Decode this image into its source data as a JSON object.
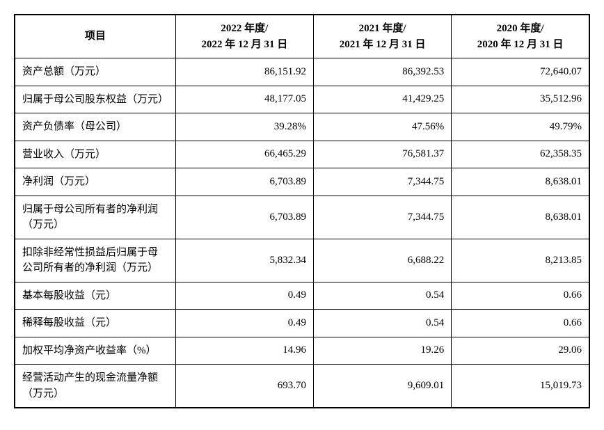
{
  "table": {
    "type": "table",
    "background_color": "#ffffff",
    "border_color": "#000000",
    "text_color": "#000000",
    "header_fontsize": 15,
    "cell_fontsize": 15,
    "font_family_cjk": "SimSun",
    "font_family_numeric": "Times New Roman",
    "header_font_weight": "bold",
    "column_widths_pct": [
      28,
      24,
      24,
      24
    ],
    "text_align_label": "left",
    "text_align_value": "right",
    "text_align_header": "center",
    "columns": [
      "项目",
      "2022 年度/\n2022 年 12 月 31 日",
      "2021 年度/\n2021 年 12 月 31 日",
      "2020 年度/\n2020 年 12 月 31 日"
    ],
    "rows": [
      {
        "label": "资产总额（万元）",
        "v2022": "86,151.92",
        "v2021": "86,392.53",
        "v2020": "72,640.07"
      },
      {
        "label": "归属于母公司股东权益（万元）",
        "v2022": "48,177.05",
        "v2021": "41,429.25",
        "v2020": "35,512.96"
      },
      {
        "label": "资产负债率（母公司）",
        "v2022": "39.28%",
        "v2021": "47.56%",
        "v2020": "49.79%"
      },
      {
        "label": "营业收入（万元）",
        "v2022": "66,465.29",
        "v2021": "76,581.37",
        "v2020": "62,358.35"
      },
      {
        "label": "净利润（万元）",
        "v2022": "6,703.89",
        "v2021": "7,344.75",
        "v2020": "8,638.01"
      },
      {
        "label": "归属于母公司所有者的净利润（万元）",
        "v2022": "6,703.89",
        "v2021": "7,344.75",
        "v2020": "8,638.01"
      },
      {
        "label": "扣除非经常性损益后归属于母公司所有者的净利润（万元）",
        "v2022": "5,832.34",
        "v2021": "6,688.22",
        "v2020": "8,213.85"
      },
      {
        "label": "基本每股收益（元）",
        "v2022": "0.49",
        "v2021": "0.54",
        "v2020": "0.66"
      },
      {
        "label": "稀释每股收益（元）",
        "v2022": "0.49",
        "v2021": "0.54",
        "v2020": "0.66"
      },
      {
        "label": "加权平均净资产收益率（%）",
        "v2022": "14.96",
        "v2021": "19.26",
        "v2020": "29.06"
      },
      {
        "label": "经营活动产生的现金流量净额（万元）",
        "v2022": "693.70",
        "v2021": "9,609.01",
        "v2020": "15,019.73"
      }
    ]
  }
}
